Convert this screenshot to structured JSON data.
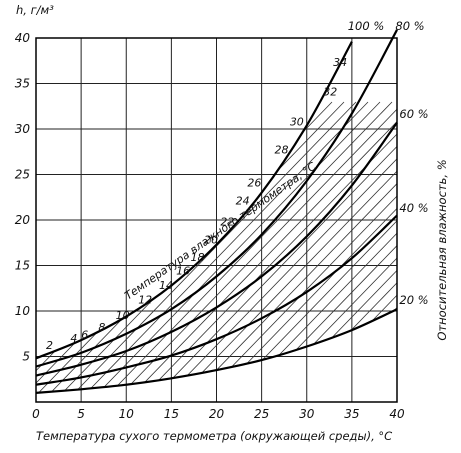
{
  "chart_data": {
    "type": "line",
    "xlabel": "Температура сухого термометра (окружающей среды), °С",
    "ylabel": "h, г/м³",
    "right_label": "Относительная влажность, %",
    "wetbulb_title": "Температура влажного термометра, °С",
    "xlim": [
      0,
      40
    ],
    "ylim": [
      0,
      40
    ],
    "xticks": [
      "0",
      "5",
      "10",
      "15",
      "20",
      "25",
      "30",
      "35",
      "40"
    ],
    "yticks": [
      "5",
      "10",
      "15",
      "20",
      "25",
      "30",
      "35",
      "40"
    ],
    "grid": true,
    "series": [
      {
        "name": "100 %",
        "x": [
          0,
          5,
          10,
          15,
          20,
          25,
          30,
          35
        ],
        "y": [
          4.8,
          6.8,
          9.4,
          12.8,
          17.3,
          23.0,
          30.4,
          39.6
        ]
      },
      {
        "name": "80 %",
        "x": [
          0,
          5,
          10,
          15,
          20,
          25,
          30,
          35,
          40
        ],
        "y": [
          3.9,
          5.4,
          7.5,
          10.2,
          13.8,
          18.4,
          24.3,
          31.7,
          40.9
        ]
      },
      {
        "name": "60 %",
        "x": [
          0,
          5,
          10,
          15,
          20,
          25,
          30,
          35,
          40
        ],
        "y": [
          2.9,
          4.1,
          5.6,
          7.7,
          10.4,
          13.8,
          18.2,
          23.8,
          30.7
        ]
      },
      {
        "name": "40 %",
        "x": [
          0,
          5,
          10,
          15,
          20,
          25,
          30,
          35,
          40
        ],
        "y": [
          1.9,
          2.7,
          3.8,
          5.1,
          6.9,
          9.2,
          12.1,
          15.8,
          20.5
        ]
      },
      {
        "name": "20 %",
        "x": [
          0,
          5,
          10,
          15,
          20,
          25,
          30,
          35,
          40
        ],
        "y": [
          1.0,
          1.4,
          1.9,
          2.6,
          3.5,
          4.6,
          6.1,
          7.9,
          10.2
        ]
      }
    ],
    "wet_bulb_labels": [
      {
        "text": "2",
        "x": 1.5,
        "y": 5.8
      },
      {
        "text": "4",
        "x": 4.2,
        "y": 6.6
      },
      {
        "text": "6",
        "x": 5.4,
        "y": 7.0
      },
      {
        "text": "8",
        "x": 7.3,
        "y": 7.8
      },
      {
        "text": "10",
        "x": 9.6,
        "y": 9.1
      },
      {
        "text": "12",
        "x": 12.1,
        "y": 10.8
      },
      {
        "text": "14",
        "x": 14.4,
        "y": 12.4
      },
      {
        "text": "16",
        "x": 16.3,
        "y": 14.0
      },
      {
        "text": "18",
        "x": 17.9,
        "y": 15.5
      },
      {
        "text": "20",
        "x": 19.4,
        "y": 17.4
      },
      {
        "text": "22",
        "x": 21.2,
        "y": 19.4
      },
      {
        "text": "24",
        "x": 22.9,
        "y": 21.7
      },
      {
        "text": "26",
        "x": 24.2,
        "y": 23.7
      },
      {
        "text": "28",
        "x": 27.2,
        "y": 27.3
      },
      {
        "text": "30",
        "x": 28.9,
        "y": 30.4
      },
      {
        "text": "32",
        "x": 32.6,
        "y": 33.7
      },
      {
        "text": "34",
        "x": 33.7,
        "y": 36.9
      }
    ]
  }
}
